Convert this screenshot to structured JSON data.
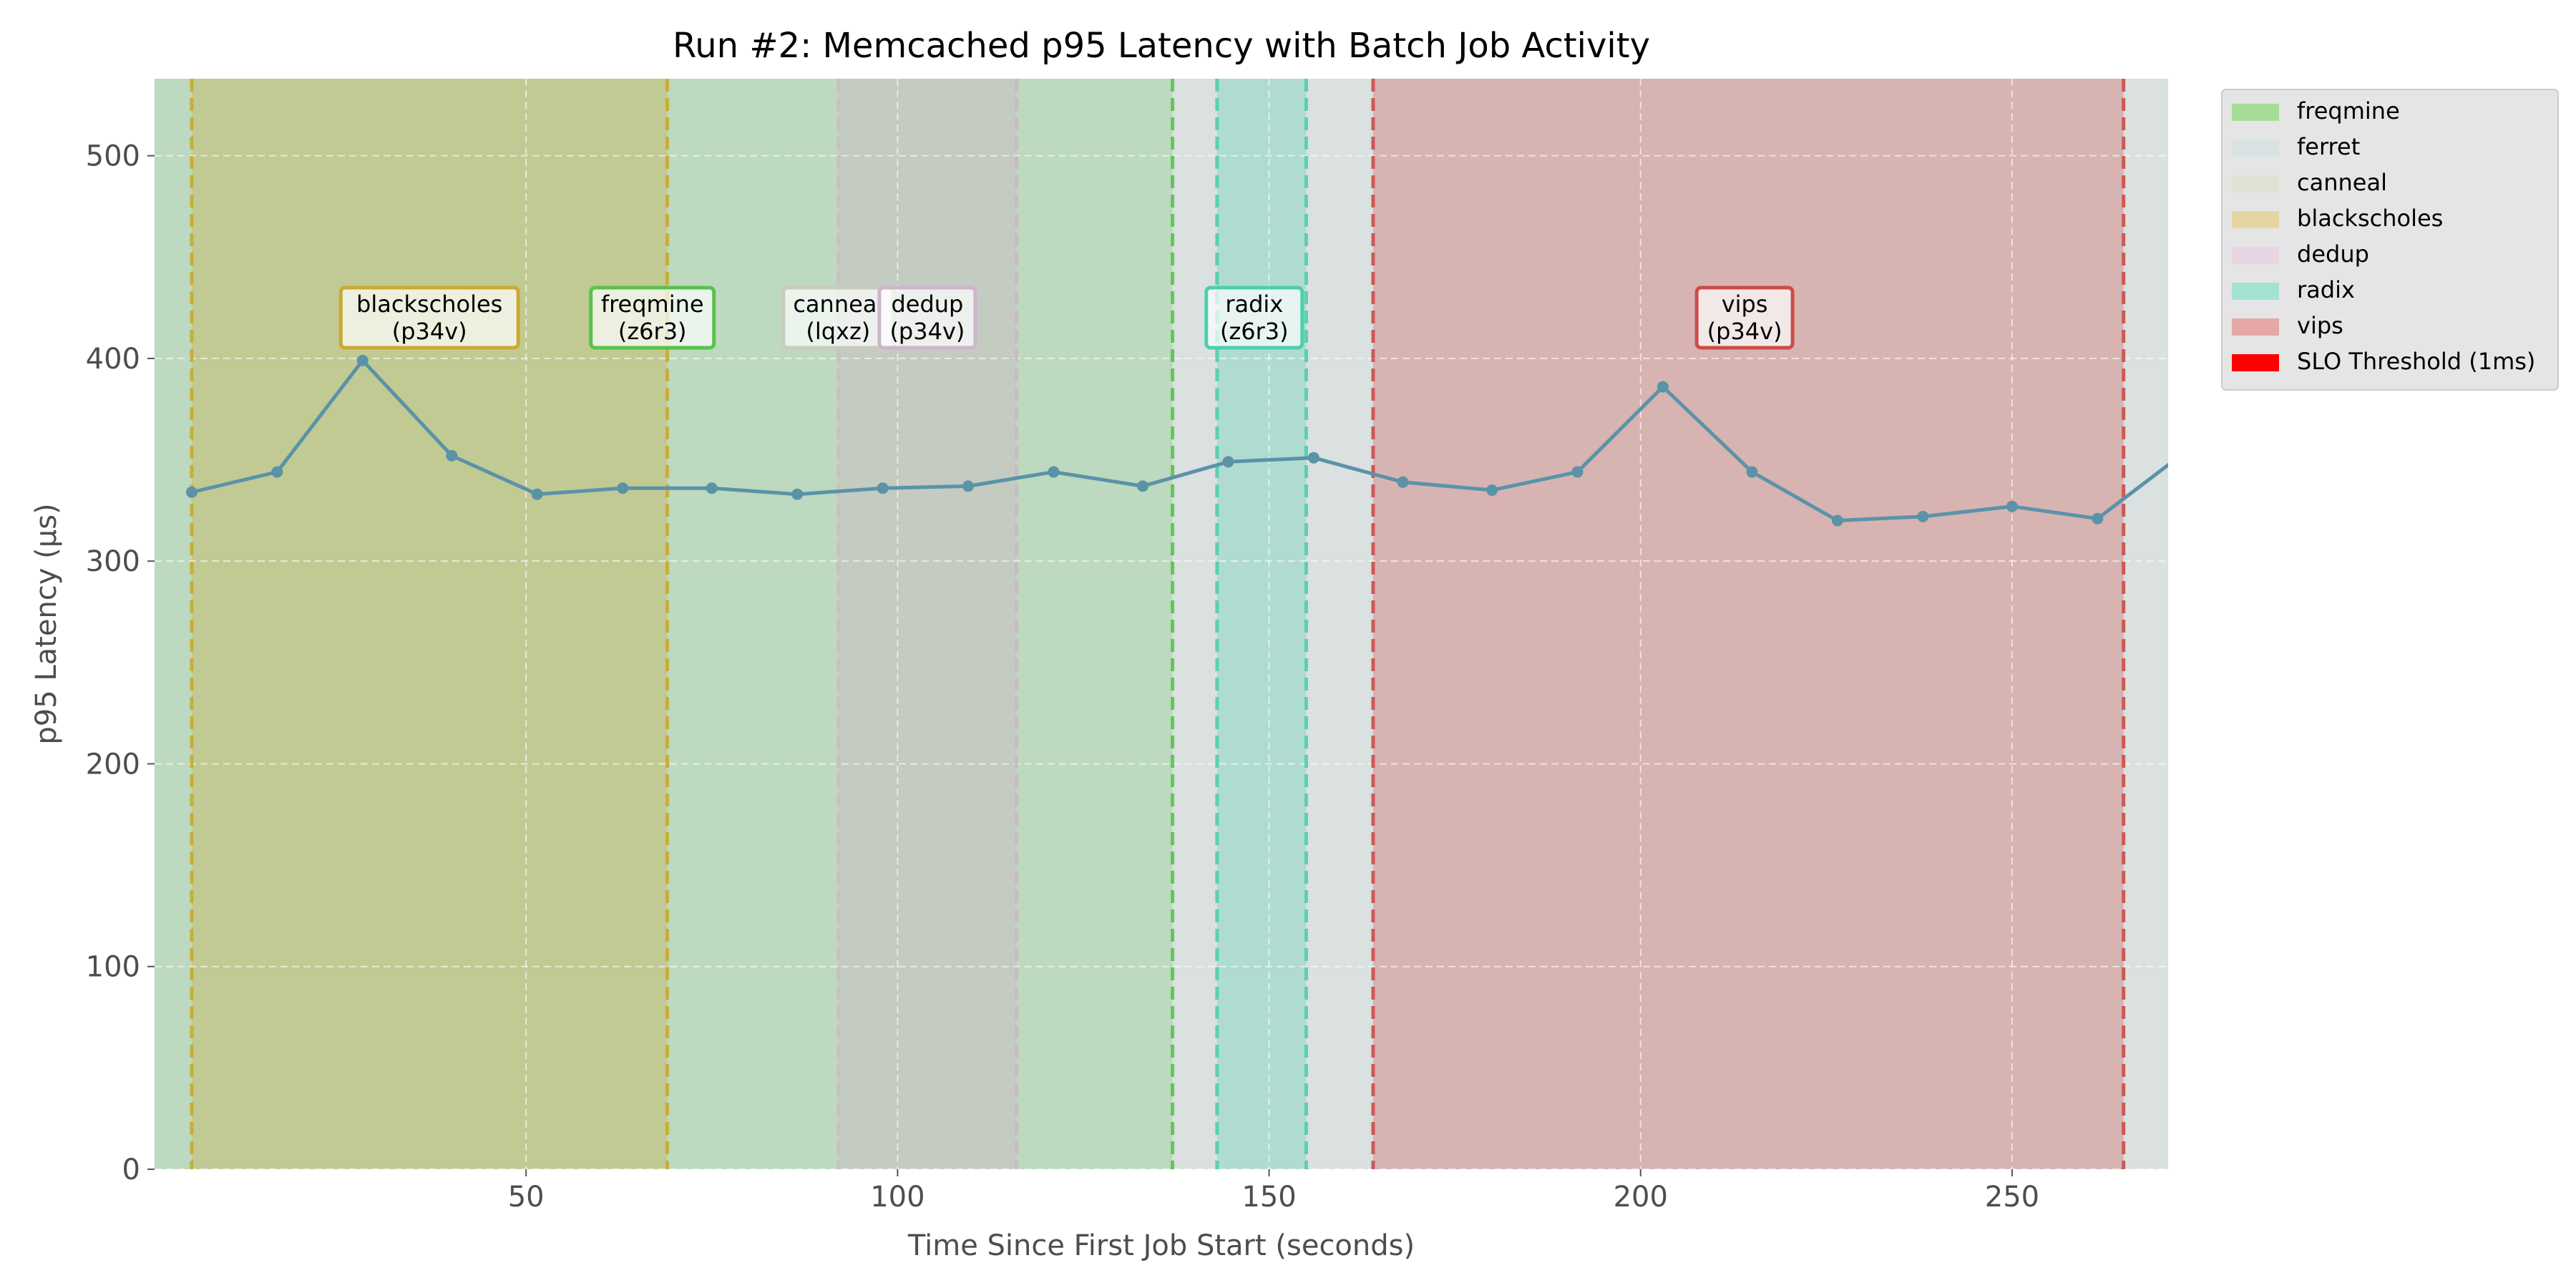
{
  "chart_data": {
    "type": "line",
    "title": "Run #2: Memcached p95 Latency with Batch Job Activity",
    "xlabel": "Time Since First Job Start (seconds)",
    "ylabel": "p95 Latency (µs)",
    "xlim": [
      0,
      271
    ],
    "ylim": [
      0,
      538
    ],
    "xticks": [
      50,
      100,
      150,
      200,
      250
    ],
    "yticks": [
      0,
      100,
      200,
      300,
      400,
      500
    ],
    "grid": true,
    "legend_position": "outside-right-top",
    "background_color": "#e5e5e5",
    "line_color": "#5a93a8",
    "series": [
      {
        "x": [
          5,
          16.5,
          28,
          40,
          51.5,
          63,
          75,
          86.5,
          98,
          109.5,
          121,
          133,
          144.5,
          156,
          168,
          180,
          191.5,
          203,
          215,
          226.5,
          238,
          250,
          261.5,
          273
        ],
        "values": [
          334,
          344,
          399,
          352,
          333,
          336,
          336,
          333,
          336,
          337,
          344,
          337,
          349,
          351,
          339,
          335,
          344,
          386,
          344,
          320,
          322,
          327,
          321,
          353
        ]
      }
    ],
    "jobs": [
      {
        "name": "freqmine",
        "color": "#57c34a",
        "start": 0,
        "end": 137,
        "label": "freqmine\n(z6r3)",
        "label_x": 67
      },
      {
        "name": "ferret",
        "color": "#c4d4d4",
        "start": 0,
        "end": 271,
        "label": "",
        "label_x": null
      },
      {
        "name": "canneal",
        "color": "#cbcbbb",
        "start": 92,
        "end": 116,
        "label": "canneal\n(lqxz)",
        "label_x": 92
      },
      {
        "name": "blackscholes",
        "color": "#c9aa30",
        "start": 5,
        "end": 69,
        "label": "blackscholes\n(p34v)",
        "label_x": 37
      },
      {
        "name": "dedup",
        "color": "#cdb5cb",
        "start": 92,
        "end": 116,
        "label": "dedup\n(p34v)",
        "label_x": 104
      },
      {
        "name": "radix",
        "color": "#4dcfae",
        "start": 143,
        "end": 155,
        "label": "radix\n(z6r3)",
        "label_x": 148
      },
      {
        "name": "vips",
        "color": "#cc4c48",
        "start": 164,
        "end": 265,
        "label": "vips\n(p34v)",
        "label_x": 214
      }
    ],
    "dashed_lines": [
      {
        "x": 5,
        "color": "#c9aa30"
      },
      {
        "x": 69,
        "color": "#c9aa30"
      },
      {
        "x": 92,
        "color": "#c8c0c0"
      },
      {
        "x": 116,
        "color": "#cdb5cb"
      },
      {
        "x": 137,
        "color": "#57c34a"
      },
      {
        "x": 143,
        "color": "#4dcfae"
      },
      {
        "x": 155,
        "color": "#4dcfae"
      },
      {
        "x": 164,
        "color": "#cc4c48"
      },
      {
        "x": 265,
        "color": "#cc4c48"
      }
    ],
    "legend": [
      {
        "label": "freqmine",
        "color": "#a6dd98"
      },
      {
        "label": "ferret",
        "color": "#d8e2e2"
      },
      {
        "label": "canneal",
        "color": "#e2e2d4"
      },
      {
        "label": "blackscholes",
        "color": "#e4d6a0"
      },
      {
        "label": "dedup",
        "color": "#e6d5e3"
      },
      {
        "label": "radix",
        "color": "#a3e2d3"
      },
      {
        "label": "vips",
        "color": "#e6a8a6"
      },
      {
        "label": "SLO Threshold (1ms)",
        "color": "#ff0000"
      }
    ]
  }
}
